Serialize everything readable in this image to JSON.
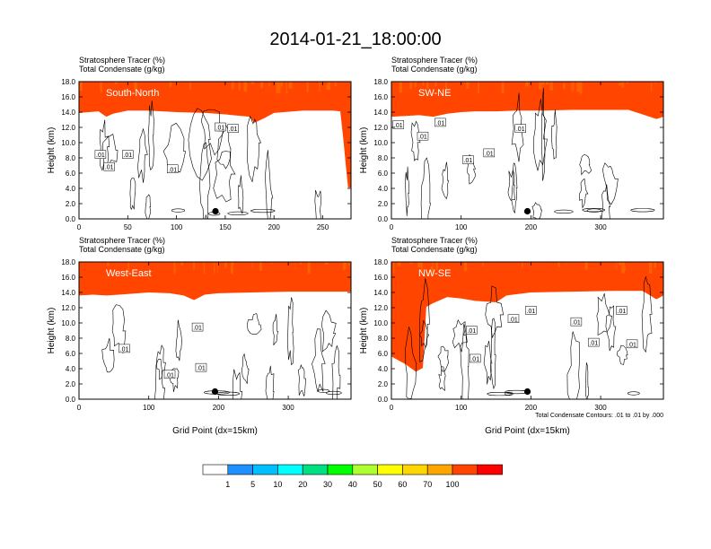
{
  "figure": {
    "title": "2014-01-21_18:00:00",
    "left_header_1": "Stratosphere Tracer   (%)",
    "left_header_2": "Total Condensate   (g/kg)",
    "y_axis_label": "Height (km)",
    "x_axis_label": "Grid Point (dx=15km)",
    "contour_note": "Total Condensate Contours: .01 to .01 by .000",
    "contour_label": ".01"
  },
  "colorbar": {
    "levels": [
      "1",
      "5",
      "10",
      "20",
      "30",
      "40",
      "50",
      "60",
      "70",
      "100"
    ],
    "colors": [
      "#ffffff",
      "#1e90ff",
      "#00bfff",
      "#00ffff",
      "#00e080",
      "#00ff00",
      "#adff2f",
      "#ffff00",
      "#ffd700",
      "#ffa500",
      "#ff4500",
      "#ff0000"
    ]
  },
  "chart_data": [
    {
      "type": "heatmap",
      "panel_label": "South-North",
      "ylim": [
        0,
        18
      ],
      "y_ticks": [
        "0.0",
        "2.0",
        "4.0",
        "6.0",
        "8.0",
        "10.0",
        "12.0",
        "14.0",
        "16.0",
        "18.0"
      ],
      "xlim": [
        0,
        279
      ],
      "x_ticks": [
        0,
        50,
        100,
        150,
        200,
        250
      ],
      "tropopause_km": [
        [
          0,
          15.3
        ],
        [
          10,
          15.4
        ],
        [
          20,
          15.5
        ],
        [
          28,
          14.8
        ],
        [
          35,
          15.2
        ],
        [
          50,
          15.6
        ],
        [
          70,
          15.6
        ],
        [
          100,
          15.4
        ],
        [
          130,
          15.3
        ],
        [
          150,
          15.1
        ],
        [
          175,
          14.8
        ],
        [
          180,
          14.0
        ],
        [
          190,
          14.6
        ],
        [
          200,
          15.3
        ],
        [
          230,
          15.6
        ],
        [
          260,
          15.6
        ],
        [
          268,
          15.5
        ],
        [
          271,
          12.0
        ],
        [
          274,
          8.0
        ],
        [
          276,
          5.5
        ],
        [
          279,
          5.5
        ]
      ],
      "marker": {
        "x": 140,
        "y": 1.0
      },
      "contour_labels": [
        {
          "x": 22,
          "y": 8.4
        },
        {
          "x": 31,
          "y": 6.8
        },
        {
          "x": 50,
          "y": 8.4
        },
        {
          "x": 96,
          "y": 6.5
        },
        {
          "x": 145,
          "y": 12.0
        },
        {
          "x": 158,
          "y": 11.8
        }
      ]
    },
    {
      "type": "heatmap",
      "panel_label": "SW-NE",
      "ylim": [
        0,
        18
      ],
      "y_ticks": [
        "0.0",
        "2.0",
        "4.0",
        "6.0",
        "8.0",
        "10.0",
        "12.0",
        "14.0",
        "16.0",
        "18.0"
      ],
      "xlim": [
        0,
        390
      ],
      "x_ticks": [
        0,
        100,
        200,
        300
      ],
      "tropopause_km": [
        [
          0,
          14.8
        ],
        [
          20,
          14.9
        ],
        [
          40,
          15.0
        ],
        [
          60,
          14.8
        ],
        [
          80,
          15.2
        ],
        [
          100,
          15.4
        ],
        [
          120,
          15.5
        ],
        [
          150,
          15.5
        ],
        [
          180,
          15.6
        ],
        [
          220,
          15.6
        ],
        [
          260,
          15.7
        ],
        [
          300,
          15.7
        ],
        [
          340,
          15.7
        ],
        [
          360,
          15.1
        ],
        [
          380,
          14.5
        ],
        [
          390,
          14.8
        ]
      ],
      "marker": {
        "x": 195,
        "y": 1.0
      },
      "contour_labels": [
        {
          "x": 10,
          "y": 12.3
        },
        {
          "x": 45,
          "y": 10.8
        },
        {
          "x": 70,
          "y": 12.6
        },
        {
          "x": 110,
          "y": 7.7
        },
        {
          "x": 140,
          "y": 8.6
        },
        {
          "x": 185,
          "y": 11.8
        }
      ]
    },
    {
      "type": "heatmap",
      "panel_label": "West-East",
      "ylim": [
        0,
        18
      ],
      "y_ticks": [
        "0.0",
        "2.0",
        "4.0",
        "6.0",
        "8.0",
        "10.0",
        "12.0",
        "14.0",
        "16.0",
        "18.0"
      ],
      "xlim": [
        0,
        390
      ],
      "x_ticks": [
        0,
        100,
        200,
        300
      ],
      "tropopause_km": [
        [
          0,
          15.0
        ],
        [
          20,
          15.1
        ],
        [
          40,
          15.0
        ],
        [
          70,
          15.2
        ],
        [
          100,
          15.4
        ],
        [
          130,
          15.3
        ],
        [
          150,
          15.0
        ],
        [
          165,
          14.4
        ],
        [
          180,
          15.1
        ],
        [
          200,
          15.3
        ],
        [
          250,
          15.4
        ],
        [
          300,
          15.5
        ],
        [
          350,
          15.5
        ],
        [
          390,
          15.5
        ]
      ],
      "marker": {
        "x": 195,
        "y": 1.0
      },
      "contour_labels": [
        {
          "x": 65,
          "y": 6.6
        },
        {
          "x": 170,
          "y": 9.4
        },
        {
          "x": 130,
          "y": 3.2
        },
        {
          "x": 175,
          "y": 4.1
        }
      ]
    },
    {
      "type": "heatmap",
      "panel_label": "NW-SE",
      "ylim": [
        0,
        18
      ],
      "y_ticks": [
        "0.0",
        "2.0",
        "4.0",
        "6.0",
        "8.0",
        "10.0",
        "12.0",
        "14.0",
        "16.0",
        "18.0"
      ],
      "xlim": [
        0,
        390
      ],
      "x_ticks": [
        0,
        100,
        200,
        300
      ],
      "tropopause_km": [
        [
          0,
          7.0
        ],
        [
          10,
          6.5
        ],
        [
          20,
          6.0
        ],
        [
          35,
          5.0
        ],
        [
          45,
          5.5
        ],
        [
          50,
          13.5
        ],
        [
          60,
          14.0
        ],
        [
          80,
          14.8
        ],
        [
          100,
          14.6
        ],
        [
          120,
          14.3
        ],
        [
          150,
          14.1
        ],
        [
          165,
          15.0
        ],
        [
          200,
          15.4
        ],
        [
          260,
          15.5
        ],
        [
          320,
          15.6
        ],
        [
          360,
          15.6
        ],
        [
          380,
          14.5
        ],
        [
          390,
          15.0
        ]
      ],
      "marker": {
        "x": 195,
        "y": 1.0
      },
      "contour_labels": [
        {
          "x": 115,
          "y": 9.0
        },
        {
          "x": 120,
          "y": 5.3
        },
        {
          "x": 175,
          "y": 10.5
        },
        {
          "x": 200,
          "y": 11.6
        },
        {
          "x": 265,
          "y": 10.1
        },
        {
          "x": 290,
          "y": 7.4
        },
        {
          "x": 330,
          "y": 11.6
        },
        {
          "x": 345,
          "y": 7.2
        }
      ]
    }
  ]
}
